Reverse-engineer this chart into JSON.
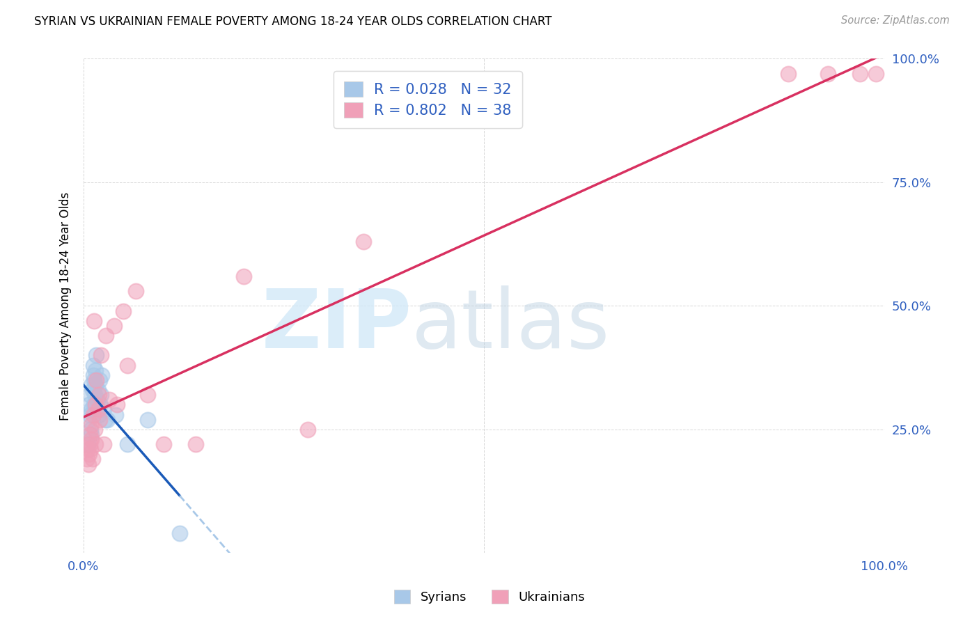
{
  "title": "SYRIAN VS UKRAINIAN FEMALE POVERTY AMONG 18-24 YEAR OLDS CORRELATION CHART",
  "source": "Source: ZipAtlas.com",
  "ylabel": "Female Poverty Among 18-24 Year Olds",
  "xlim": [
    0,
    1
  ],
  "ylim": [
    0,
    1
  ],
  "xtick_positions": [
    0.0,
    0.5,
    1.0
  ],
  "xtick_labels": [
    "0.0%",
    "",
    "100.0%"
  ],
  "ytick_positions": [
    0.25,
    0.5,
    0.75,
    1.0
  ],
  "ytick_labels": [
    "25.0%",
    "50.0%",
    "75.0%",
    "100.0%"
  ],
  "syrians_color": "#a8c8e8",
  "ukrainians_color": "#f0a0b8",
  "syrian_line_color": "#1a5ab8",
  "ukrainian_line_color": "#d83060",
  "label_color": "#3060c0",
  "r_syrian": 0.028,
  "n_syrian": 32,
  "r_ukrainian": 0.802,
  "n_ukrainian": 38,
  "syrians_x": [
    0.005,
    0.006,
    0.007,
    0.008,
    0.008,
    0.009,
    0.01,
    0.01,
    0.01,
    0.011,
    0.012,
    0.012,
    0.013,
    0.013,
    0.014,
    0.015,
    0.015,
    0.016,
    0.017,
    0.018,
    0.019,
    0.02,
    0.021,
    0.022,
    0.023,
    0.025,
    0.027,
    0.03,
    0.04,
    0.055,
    0.08,
    0.12
  ],
  "syrians_y": [
    0.22,
    0.27,
    0.3,
    0.28,
    0.32,
    0.25,
    0.24,
    0.29,
    0.34,
    0.33,
    0.36,
    0.38,
    0.3,
    0.35,
    0.32,
    0.34,
    0.37,
    0.4,
    0.31,
    0.33,
    0.28,
    0.35,
    0.3,
    0.32,
    0.36,
    0.29,
    0.27,
    0.27,
    0.28,
    0.22,
    0.27,
    0.04
  ],
  "ukrainians_x": [
    0.004,
    0.005,
    0.006,
    0.007,
    0.008,
    0.008,
    0.009,
    0.01,
    0.01,
    0.011,
    0.012,
    0.013,
    0.014,
    0.015,
    0.015,
    0.016,
    0.018,
    0.019,
    0.02,
    0.022,
    0.025,
    0.028,
    0.032,
    0.038,
    0.042,
    0.05,
    0.055,
    0.065,
    0.08,
    0.1,
    0.14,
    0.2,
    0.28,
    0.35,
    0.88,
    0.93,
    0.97,
    0.99
  ],
  "ukrainians_y": [
    0.19,
    0.21,
    0.18,
    0.2,
    0.22,
    0.24,
    0.21,
    0.23,
    0.26,
    0.19,
    0.28,
    0.47,
    0.25,
    0.22,
    0.3,
    0.35,
    0.29,
    0.32,
    0.27,
    0.4,
    0.22,
    0.44,
    0.31,
    0.46,
    0.3,
    0.49,
    0.38,
    0.53,
    0.32,
    0.22,
    0.22,
    0.56,
    0.25,
    0.63,
    0.97,
    0.97,
    0.97,
    0.97
  ]
}
